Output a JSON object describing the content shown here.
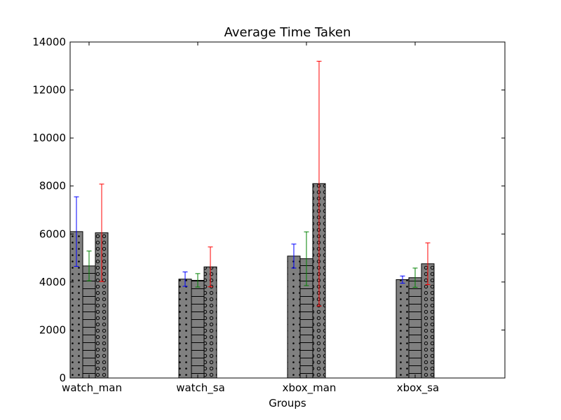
{
  "chart_data": {
    "type": "bar",
    "title": "Average Time Taken",
    "xlabel": "Groups",
    "ylabel": "",
    "ylim": [
      0,
      14000
    ],
    "yticks": [
      0,
      2000,
      4000,
      6000,
      8000,
      10000,
      12000,
      14000
    ],
    "ytick_labels": [
      "0",
      "2000",
      "4000",
      "6000",
      "8000",
      "10000",
      "12000",
      "14000"
    ],
    "categories": [
      "watch_man",
      "watch_sa",
      "xbox_man",
      "xbox_sa"
    ],
    "grid": false,
    "legend": "none",
    "bar_fill": "#808080",
    "series": [
      {
        "values": [
          6100,
          4120,
          5080,
          4100
        ],
        "errors": [
          1450,
          300,
          500,
          150
        ],
        "error_color": "#0000ff",
        "hatch": "dots"
      },
      {
        "values": [
          4670,
          4070,
          4970,
          4180
        ],
        "errors": [
          620,
          280,
          1120,
          400
        ],
        "error_color": "#008000",
        "hatch": "horizontal-lines"
      },
      {
        "values": [
          6050,
          4630,
          8100,
          4760
        ],
        "errors": [
          2030,
          830,
          5100,
          870
        ],
        "error_color": "#ff0000",
        "hatch": "circles"
      }
    ]
  }
}
